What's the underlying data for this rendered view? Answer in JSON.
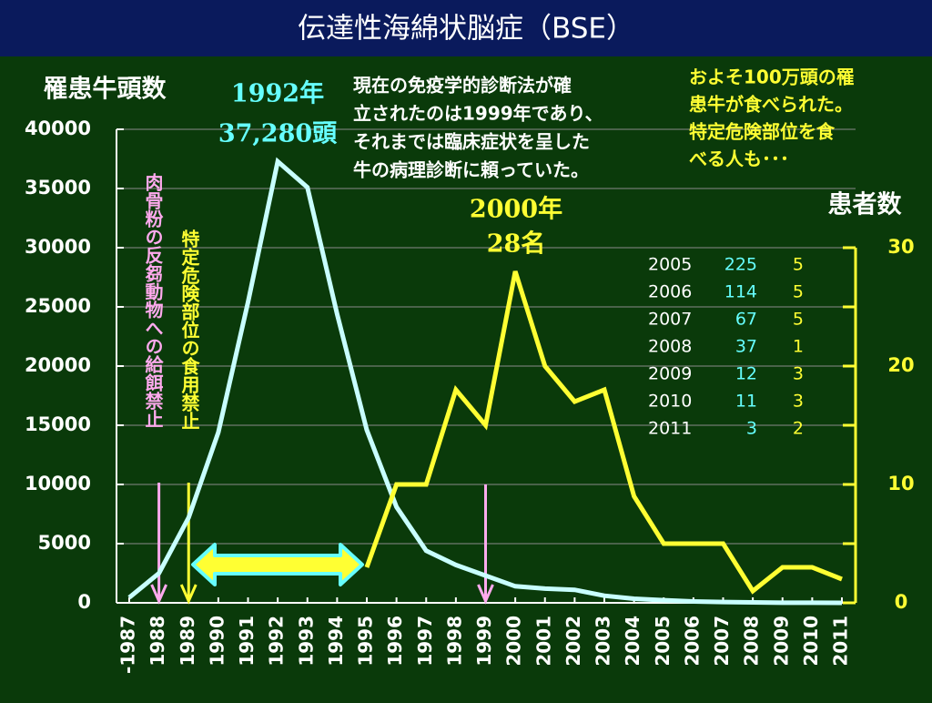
{
  "chart_data": {
    "type": "line",
    "title": "伝達性海綿状脳症（BSE）",
    "ylabel": "罹患牛頭数",
    "y2label": "患者数",
    "categories": [
      "-1987",
      "1988",
      "1989",
      "1990",
      "1991",
      "1992",
      "1993",
      "1994",
      "1995",
      "1996",
      "1997",
      "1998",
      "1999",
      "2000",
      "2001",
      "2002",
      "2003",
      "2004",
      "2005",
      "2006",
      "2007",
      "2008",
      "2009",
      "2010",
      "2011"
    ],
    "series": [
      {
        "name": "罹患牛頭数",
        "color": "#c8ffff",
        "values": [
          450,
          2500,
          7200,
          14400,
          25400,
          37280,
          35100,
          24400,
          14600,
          8100,
          4400,
          3200,
          2300,
          1400,
          1200,
          1100,
          600,
          350,
          225,
          114,
          67,
          37,
          12,
          11,
          3
        ]
      },
      {
        "name": "患者数",
        "color": "#ffff33",
        "axis": "y2",
        "values": [
          null,
          null,
          null,
          null,
          null,
          null,
          null,
          null,
          3,
          10,
          10,
          18,
          15,
          28,
          20,
          17,
          18,
          9,
          5,
          5,
          5,
          1,
          3,
          3,
          2
        ]
      }
    ],
    "ylim": [
      0,
      40000
    ],
    "yticks": [
      0,
      5000,
      10000,
      15000,
      20000,
      25000,
      30000,
      35000,
      40000
    ],
    "y2lim": [
      0,
      30
    ],
    "y2ticks": [
      0,
      10,
      20,
      30
    ],
    "y2minor_ticks": [
      5,
      15,
      25
    ],
    "grid": true,
    "table_rows": [
      18,
      19,
      20,
      21,
      22,
      23,
      24
    ],
    "annotations": {
      "peak_cattle": [
        "1992年",
        "37,280頭"
      ],
      "peak_patients": [
        "2000年",
        "28名"
      ],
      "diagnosis_note": [
        "現在の免疫学的診断法が確",
        "立されたのは1999年であり、",
        "それまでは臨床症状を呈した",
        "牛の病理診断に頼っていた。"
      ],
      "consumption_note": [
        "およそ100万頭の罹",
        "患牛が食べられた。",
        "特定危険部位を食",
        "べる人も･･･"
      ],
      "feed_ban": "肉骨粉の反芻動物への給餌禁止",
      "srm_ban": "特定危険部位の食用禁止"
    }
  }
}
